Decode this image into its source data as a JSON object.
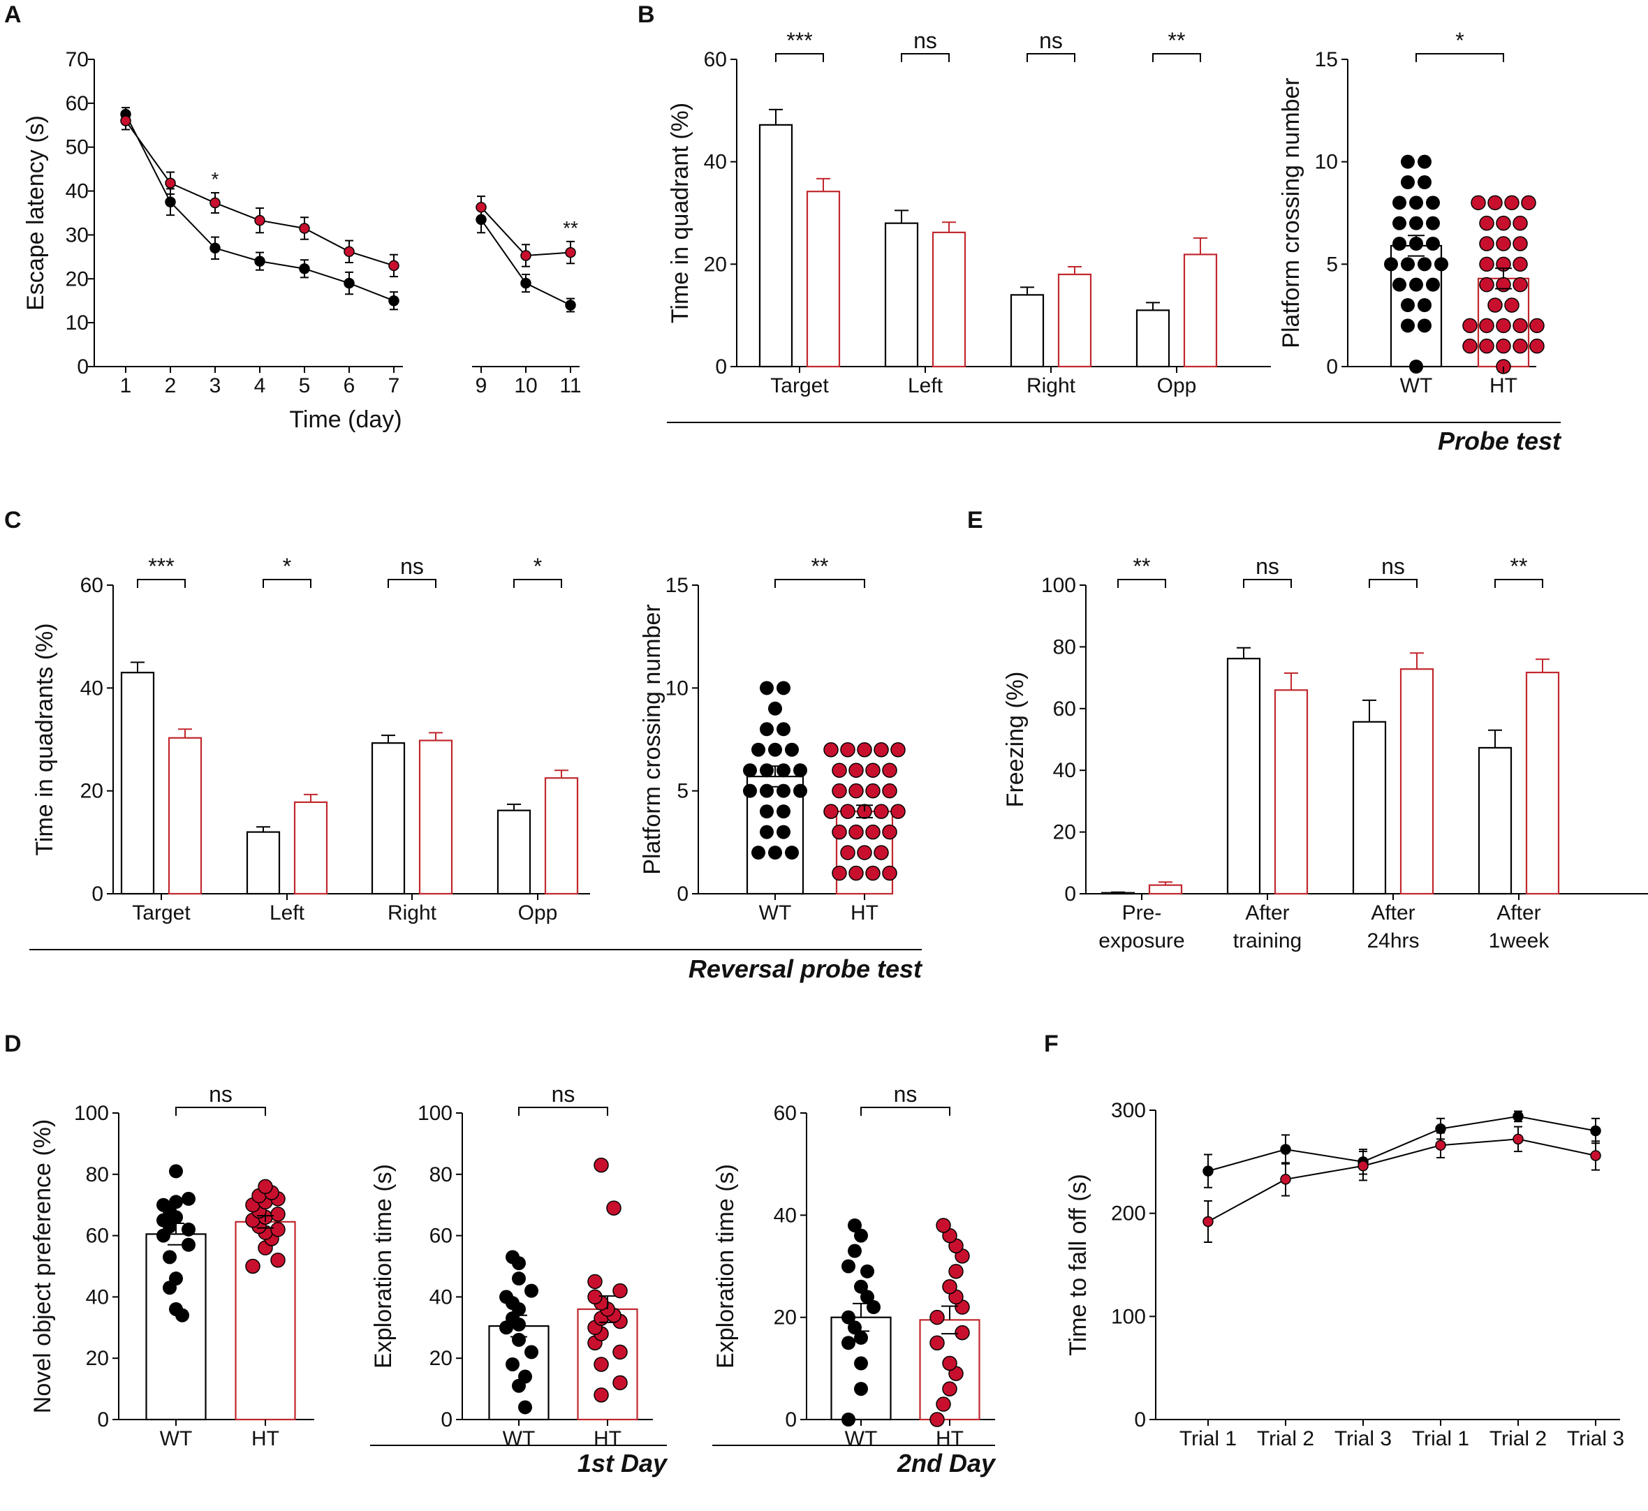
{
  "colors": {
    "wt": "#000000",
    "ht": "#c1272d",
    "ht_marker": "#c8102e"
  },
  "panel_labels": [
    "A",
    "B",
    "C",
    "D",
    "E",
    "F"
  ],
  "footers": {
    "probe": "Probe test",
    "reversal": "Reversal probe test",
    "day1": "1st Day",
    "day2": "2nd Day"
  },
  "chart_data": [
    {
      "id": "A",
      "type": "line",
      "title": "",
      "xlabel": "Time (day)",
      "ylabel": "Escape latency (s)",
      "ylim": [
        0,
        70
      ],
      "yticks": [
        0,
        10,
        20,
        30,
        40,
        50,
        60,
        70
      ],
      "x": [
        1,
        2,
        3,
        4,
        5,
        6,
        7,
        9,
        10,
        11
      ],
      "segments": [
        [
          0,
          6
        ],
        [
          7,
          9
        ]
      ],
      "series": [
        {
          "name": "WT",
          "values": [
            57.5,
            37.5,
            27.0,
            24.0,
            22.3,
            19.0,
            15.0,
            33.5,
            19.0,
            14.0
          ],
          "err": [
            1.5,
            3.0,
            2.5,
            2.0,
            2.0,
            2.5,
            2.0,
            3.0,
            2.0,
            1.5
          ]
        },
        {
          "name": "HT",
          "values": [
            56.0,
            41.8,
            37.3,
            33.3,
            31.5,
            26.2,
            23.0,
            36.3,
            25.3,
            26.0
          ],
          "err": [
            2.0,
            2.5,
            2.3,
            2.8,
            2.5,
            2.5,
            2.5,
            2.5,
            2.5,
            2.5
          ]
        }
      ],
      "annotations": [
        {
          "x": 3,
          "text": "*"
        },
        {
          "x": 11,
          "text": "**"
        }
      ]
    },
    {
      "id": "B1",
      "type": "bar",
      "title": "",
      "xlabel": "",
      "ylabel": "Time in quadrant (%)",
      "ylim": [
        0,
        60
      ],
      "yticks": [
        0,
        20,
        40,
        60
      ],
      "categories": [
        "Target",
        "Left",
        "Right",
        "Opp"
      ],
      "series": [
        {
          "name": "WT",
          "values": [
            47.2,
            28.0,
            14.0,
            11.0
          ],
          "err": [
            3.0,
            2.5,
            1.5,
            1.5
          ]
        },
        {
          "name": "HT",
          "values": [
            34.2,
            26.2,
            18.0,
            21.9
          ],
          "err": [
            2.5,
            2.0,
            1.5,
            3.2
          ]
        }
      ],
      "significance": [
        "***",
        "ns",
        "ns",
        "**"
      ]
    },
    {
      "id": "B2",
      "type": "bar",
      "title": "",
      "xlabel": "",
      "ylabel": "Platform crossing number",
      "ylim": [
        0,
        15
      ],
      "yticks": [
        0,
        5,
        10,
        15
      ],
      "categories": [
        "WT",
        "HT"
      ],
      "values": [
        5.9,
        4.3
      ],
      "err": [
        0.5,
        0.5
      ],
      "points": [
        [
          0,
          2,
          2,
          3,
          3,
          4,
          4,
          4,
          5,
          5,
          5,
          5,
          6,
          6,
          6,
          7,
          7,
          7,
          8,
          8,
          8,
          9,
          9,
          10,
          10
        ],
        [
          0,
          1,
          1,
          1,
          1,
          1,
          2,
          2,
          2,
          2,
          2,
          3,
          3,
          4,
          4,
          4,
          5,
          5,
          5,
          6,
          6,
          6,
          7,
          7,
          7,
          8,
          8,
          8,
          8
        ]
      ],
      "significance": "*"
    },
    {
      "id": "C1",
      "type": "bar",
      "title": "",
      "xlabel": "",
      "ylabel": "Time in quadrants (%)",
      "ylim": [
        0,
        60
      ],
      "yticks": [
        0,
        20,
        40,
        60
      ],
      "categories": [
        "Target",
        "Left",
        "Right",
        "Opp"
      ],
      "series": [
        {
          "name": "WT",
          "values": [
            43.0,
            12.0,
            29.3,
            16.2
          ],
          "err": [
            2.0,
            1.0,
            1.5,
            1.2
          ]
        },
        {
          "name": "HT",
          "values": [
            30.3,
            17.8,
            29.8,
            22.5
          ],
          "err": [
            1.7,
            1.5,
            1.5,
            1.5
          ]
        }
      ],
      "significance": [
        "***",
        "*",
        "ns",
        "*"
      ]
    },
    {
      "id": "C2",
      "type": "bar",
      "title": "",
      "xlabel": "",
      "ylabel": "Platform crossing number",
      "ylim": [
        0,
        15
      ],
      "yticks": [
        0,
        5,
        10,
        15
      ],
      "categories": [
        "WT",
        "HT"
      ],
      "values": [
        5.7,
        4.0
      ],
      "err": [
        0.5,
        0.3
      ],
      "points": [
        [
          2,
          2,
          2,
          3,
          3,
          4,
          4,
          5,
          5,
          5,
          5,
          6,
          6,
          6,
          6,
          7,
          7,
          7,
          8,
          8,
          9,
          10,
          10
        ],
        [
          1,
          1,
          1,
          1,
          2,
          2,
          2,
          3,
          3,
          3,
          3,
          4,
          4,
          4,
          4,
          4,
          5,
          5,
          5,
          5,
          6,
          6,
          6,
          6,
          7,
          7,
          7,
          7,
          7
        ]
      ],
      "significance": "**"
    },
    {
      "id": "E",
      "type": "bar",
      "title": "",
      "xlabel": "",
      "ylabel": "Freezing (%)",
      "ylim": [
        0,
        100
      ],
      "yticks": [
        0,
        20,
        40,
        60,
        80,
        100
      ],
      "categories": [
        "Pre-\nexposure",
        "After\ntraining",
        "After\n24hrs",
        "After\n1week"
      ],
      "series": [
        {
          "name": "WT",
          "values": [
            0.3,
            76.2,
            55.7,
            47.3
          ],
          "err": [
            0.2,
            3.5,
            7.0,
            5.7
          ]
        },
        {
          "name": "HT",
          "values": [
            2.8,
            66.0,
            72.8,
            71.7
          ],
          "err": [
            1.0,
            5.5,
            5.2,
            4.3
          ]
        }
      ],
      "significance": [
        "**",
        "ns",
        "ns",
        "**"
      ]
    },
    {
      "id": "D1",
      "type": "bar",
      "title": "",
      "xlabel": "",
      "ylabel": "Novel object preference (%)",
      "ylim": [
        0,
        100
      ],
      "yticks": [
        0,
        20,
        40,
        60,
        80,
        100
      ],
      "categories": [
        "WT",
        "HT"
      ],
      "values": [
        60.5,
        64.5
      ],
      "err": [
        3.5,
        2.0
      ],
      "points": [
        [
          34,
          36,
          43,
          46,
          53,
          57,
          60,
          62,
          63,
          65,
          66,
          68,
          70,
          71,
          72,
          81
        ],
        [
          50,
          52,
          56,
          59,
          61,
          62,
          63,
          65,
          66,
          67,
          68,
          70,
          71,
          72,
          73,
          74,
          76
        ]
      ],
      "significance": "ns"
    },
    {
      "id": "D2",
      "type": "bar",
      "title": "",
      "xlabel": "",
      "ylabel": "Exploration time (s)",
      "ylim": [
        0,
        100
      ],
      "yticks": [
        0,
        20,
        40,
        60,
        80,
        100
      ],
      "categories": [
        "WT",
        "HT"
      ],
      "values": [
        30.5,
        36.0
      ],
      "err": [
        3.5,
        4.3
      ],
      "points": [
        [
          4,
          11,
          14,
          18,
          22,
          26,
          30,
          31,
          33,
          36,
          38,
          40,
          42,
          46,
          51,
          53
        ],
        [
          8,
          12,
          18,
          22,
          25,
          28,
          30,
          32,
          33,
          34,
          36,
          38,
          40,
          42,
          45,
          69,
          83
        ]
      ],
      "significance": "ns"
    },
    {
      "id": "D3",
      "type": "bar",
      "title": "",
      "xlabel": "",
      "ylabel": "Exploration time (s)",
      "ylim": [
        0,
        60
      ],
      "yticks": [
        0,
        20,
        40,
        60
      ],
      "categories": [
        "WT",
        "HT"
      ],
      "values": [
        20.0,
        19.5
      ],
      "err": [
        2.7,
        2.7
      ],
      "points": [
        [
          0,
          6,
          11,
          15,
          16,
          18,
          20,
          22,
          24,
          26,
          29,
          30,
          33,
          36,
          38
        ],
        [
          0,
          3,
          6,
          9,
          11,
          15,
          17,
          20,
          22,
          24,
          26,
          29,
          32,
          34,
          36,
          38
        ]
      ],
      "significance": "ns"
    },
    {
      "id": "F",
      "type": "line",
      "title": "",
      "xlabel": "",
      "ylabel": "Time to fall off (s)",
      "ylim": [
        0,
        300
      ],
      "yticks": [
        0,
        100,
        200,
        300
      ],
      "categories": [
        "Trial 1",
        "Trial 2",
        "Trial 3",
        "Trial 1",
        "Trial 2",
        "Trial 3"
      ],
      "series": [
        {
          "name": "WT",
          "values": [
            241,
            262,
            250,
            282,
            294,
            280
          ],
          "err": [
            16,
            14,
            12,
            10,
            5,
            12
          ]
        },
        {
          "name": "HT",
          "values": [
            192,
            233,
            246,
            266,
            272,
            256
          ],
          "err": [
            20,
            16,
            14,
            12,
            12,
            14
          ]
        }
      ]
    }
  ]
}
